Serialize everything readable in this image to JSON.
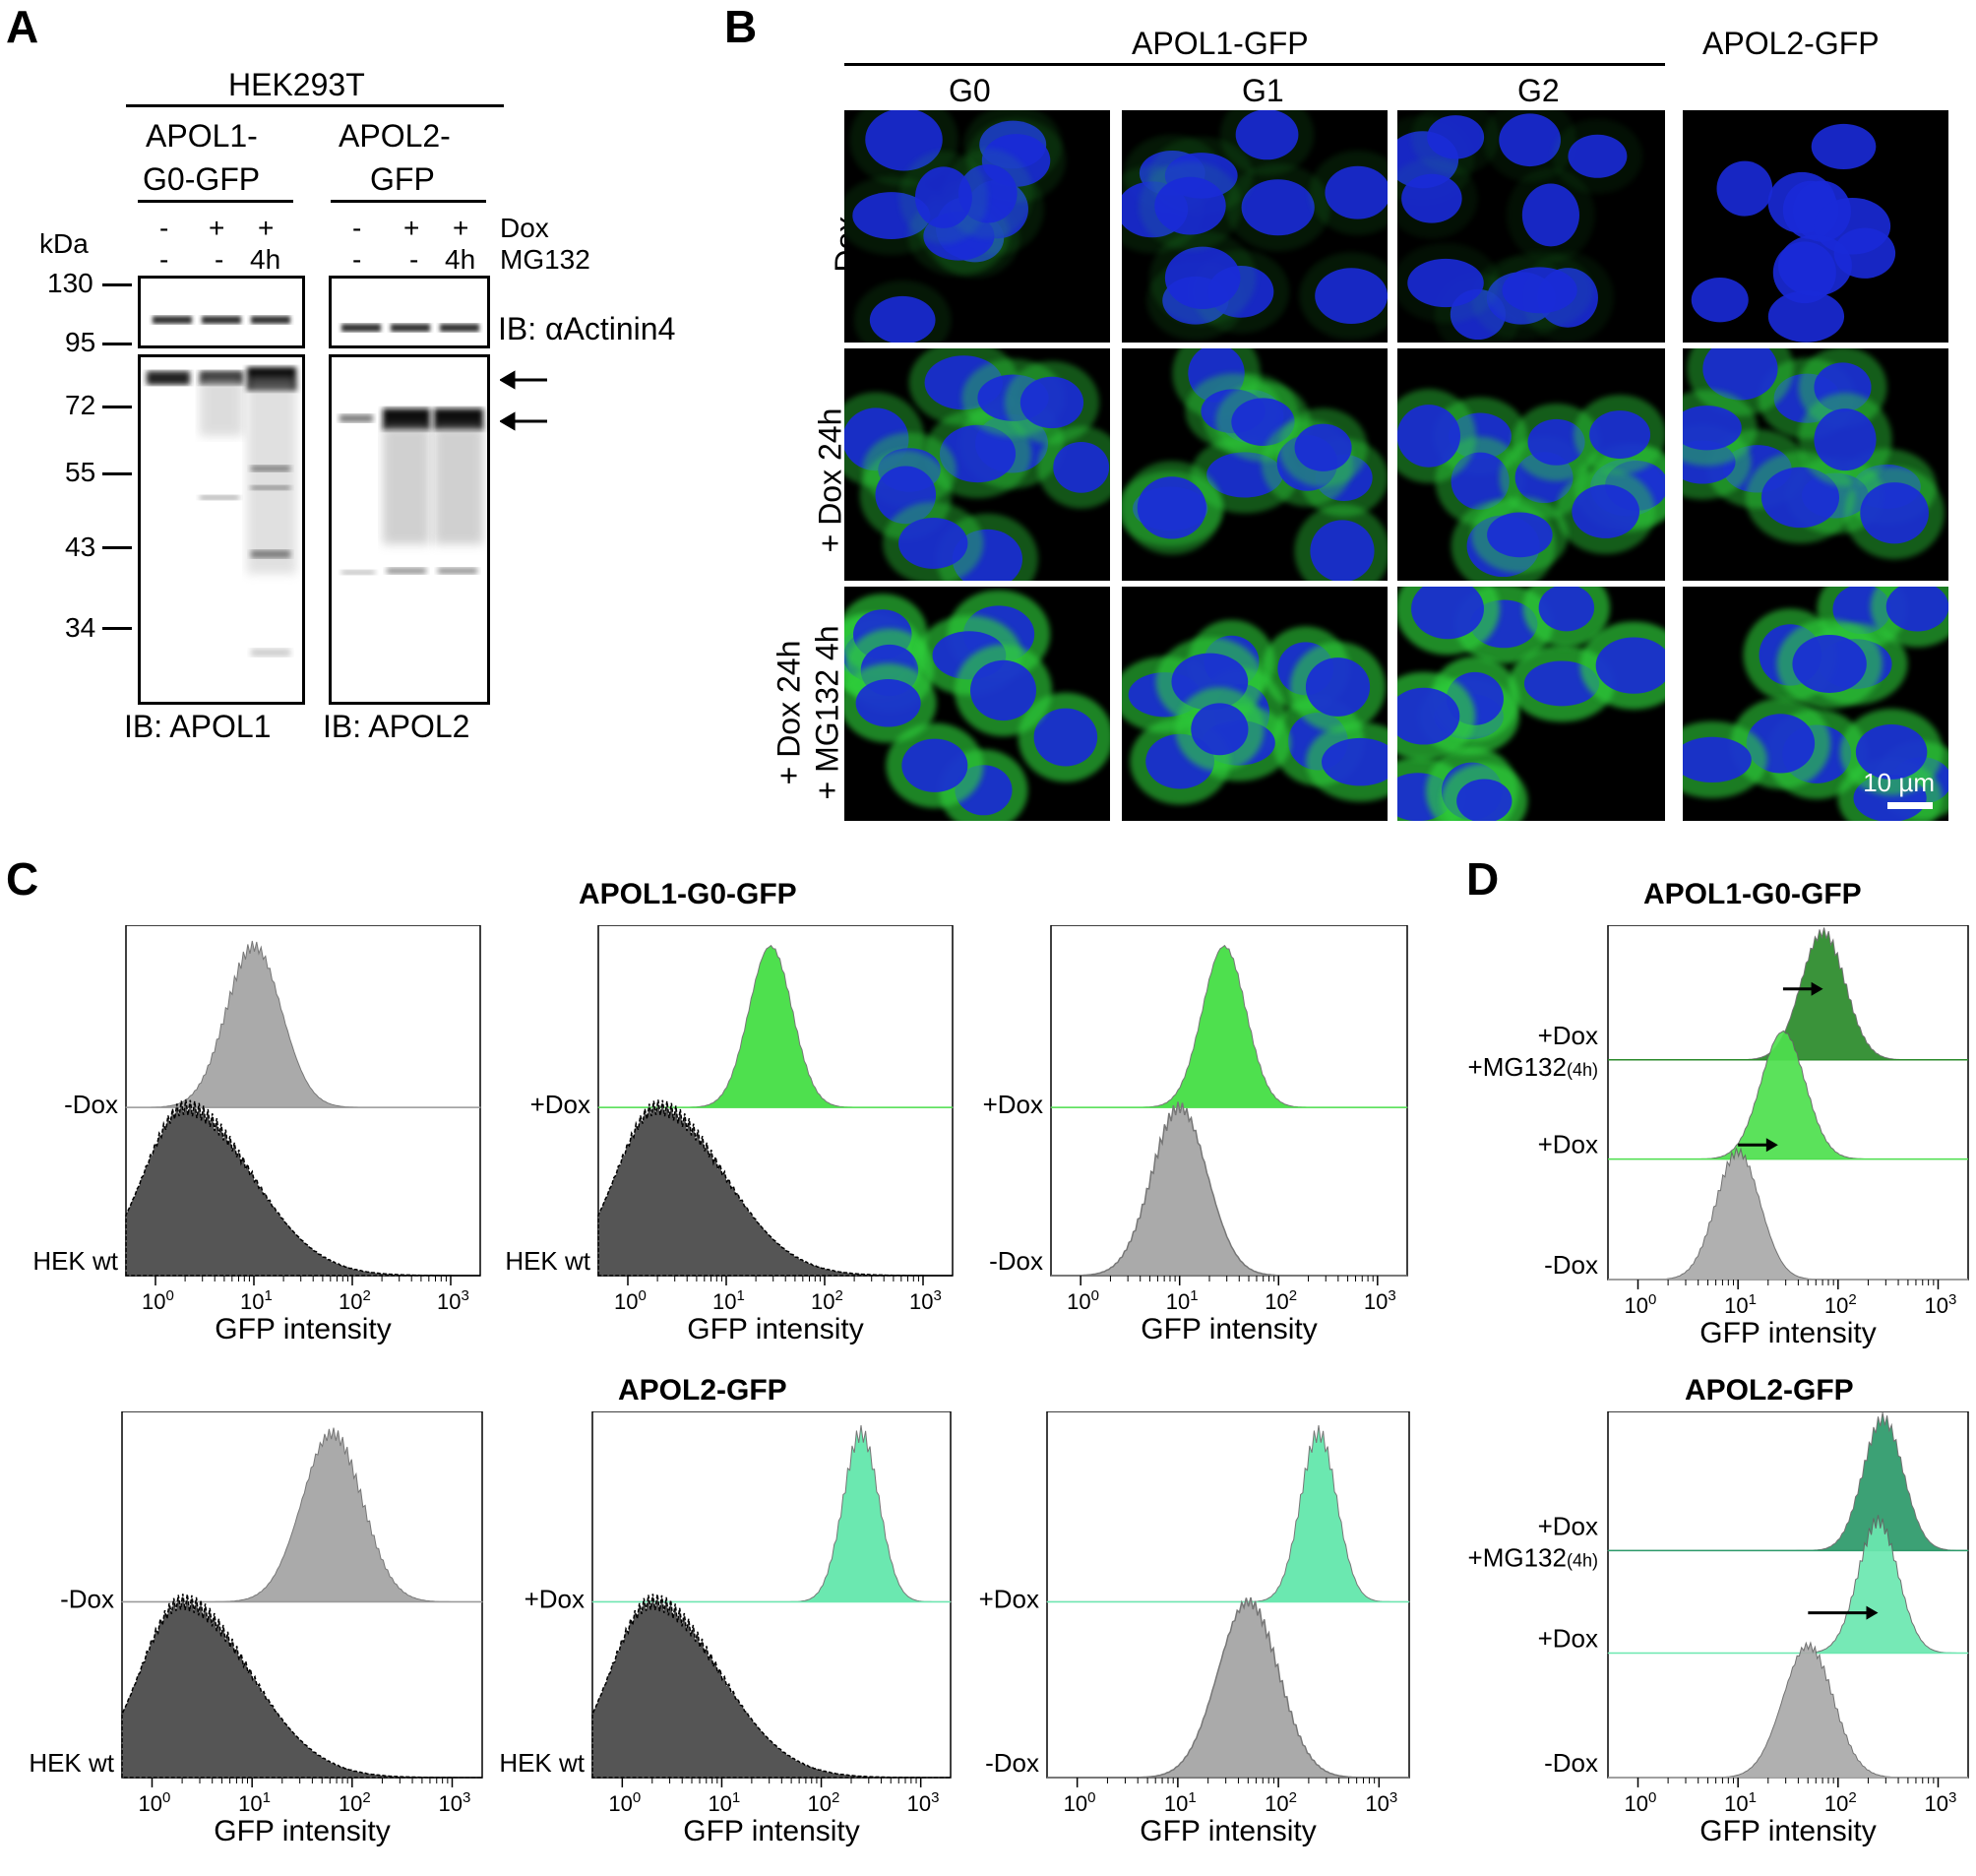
{
  "panelA": {
    "letter": "A",
    "cell_line": "HEK293T",
    "left_header_l1": "APOL1-",
    "left_header_l2": "G0-GFP",
    "right_header_l1": "APOL2-",
    "right_header_l2": "GFP",
    "kda": "kDa",
    "dox_label": "Dox",
    "mg_label": "MG132",
    "dox_row": [
      "-",
      "+",
      "+",
      "-",
      "+",
      "+"
    ],
    "mg_row": [
      "-",
      "-",
      "4h",
      "-",
      "-",
      "4h"
    ],
    "markers": [
      "130",
      "95",
      "72",
      "55",
      "43",
      "34"
    ],
    "ib_actinin": "IB: αActinin4",
    "ib_apol1": "IB: APOL1",
    "ib_apol2": "IB: APOL2"
  },
  "panelB": {
    "letter": "B",
    "apol1_header": "APOL1-GFP",
    "apol2_header": "APOL2-GFP",
    "columns": [
      "G0",
      "G1",
      "G2"
    ],
    "row1": "- Dox",
    "row2": "+ Dox 24h",
    "row3_l1": "+ Dox 24h",
    "row3_l2": "+ MG132 4h",
    "scalebar": "10 µm"
  },
  "panelC": {
    "letter": "C",
    "title_top": "APOL1-G0-GFP",
    "title_bottom": "APOL2-GFP",
    "xlabel": "GFP intensity",
    "labels": {
      "neg_dox": "-Dox",
      "pos_dox": "+Dox",
      "hek": "HEK wt"
    },
    "tick_base": "10",
    "tick_exps": [
      "0",
      "1",
      "2",
      "3"
    ]
  },
  "panelD": {
    "letter": "D",
    "title_top": "APOL1-G0-GFP",
    "title_bottom": "APOL2-GFP",
    "xlabel": "GFP intensity",
    "labels": {
      "dox_mg_l1": "+Dox",
      "dox_mg_l2": "+MG132",
      "dox_mg_sub": "(4h)",
      "pos_dox": "+Dox",
      "neg_dox": "-Dox"
    },
    "tick_base": "10",
    "tick_exps": [
      "0",
      "1",
      "2",
      "3"
    ]
  },
  "colors": {
    "hek_wt": "#555555",
    "neg_dox": "#aaaaaa",
    "apol1_green": "#4ee04e",
    "apol1_dark_green": "#2a8a2a",
    "apol2_mint": "#6be8b0",
    "apol2_dark_mint": "#2c9a6a",
    "nucleus_blue": "#1a2ad8",
    "gfp_green": "#2fcf3a"
  }
}
